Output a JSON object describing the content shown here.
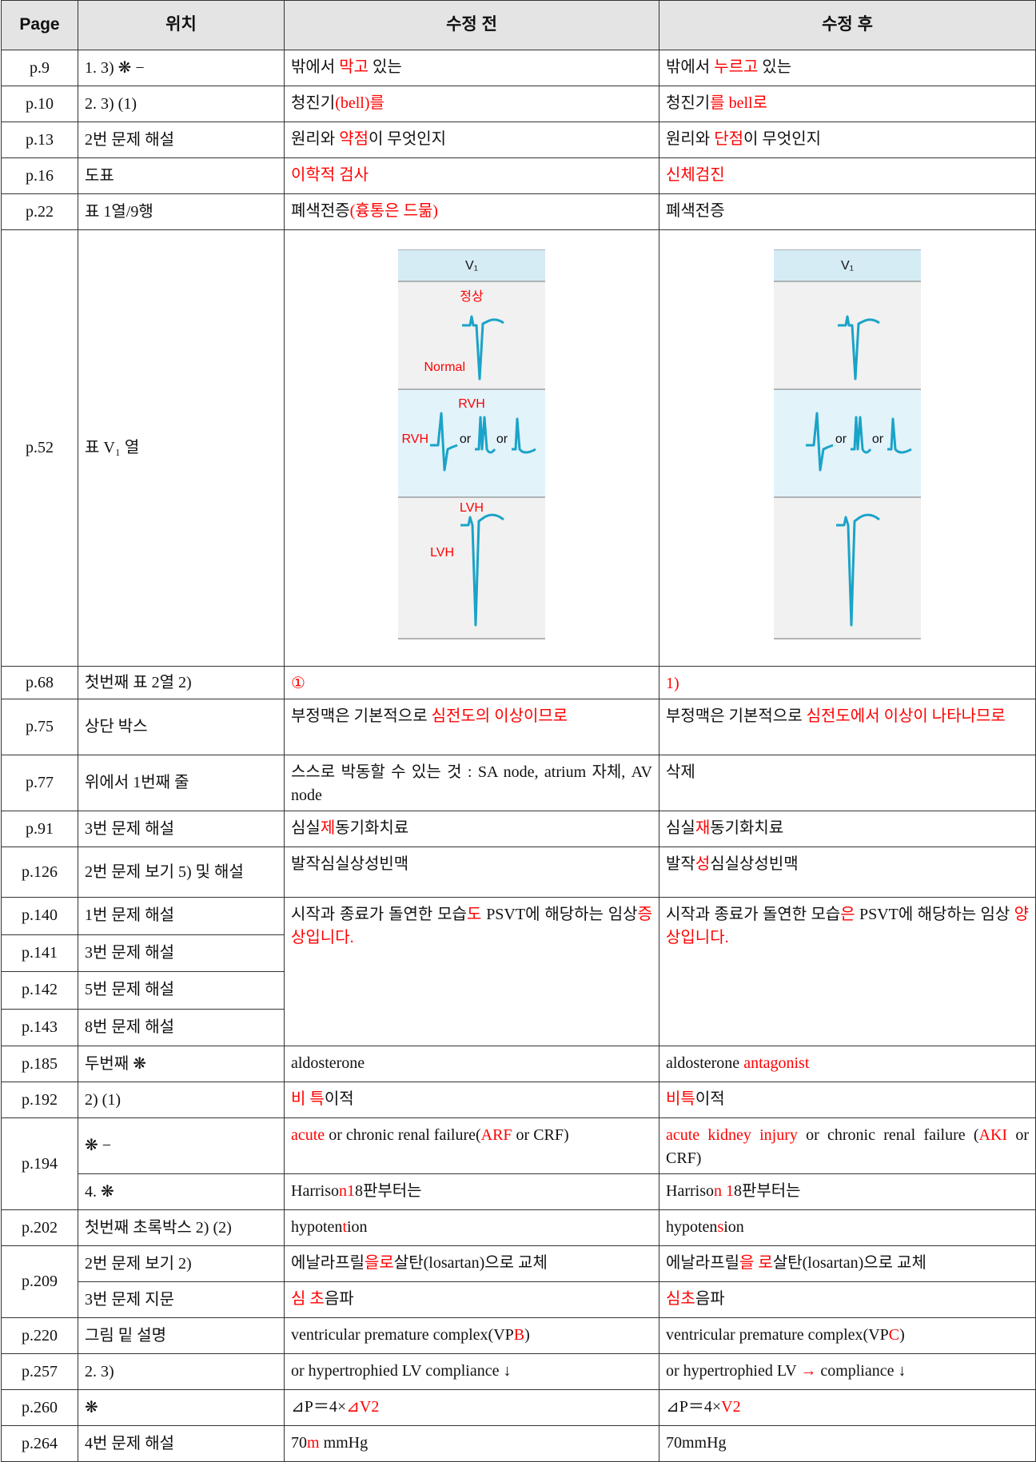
{
  "table": {
    "header": [
      "Page",
      "위치",
      "수정 전",
      "수정 후"
    ],
    "rows": [
      {
        "page": "p.9",
        "location": "1. 3) ❋ −",
        "before": [
          "밖에서 ",
          {
            "text": "막고",
            "color": "#ff0000"
          },
          " 있는"
        ],
        "after": [
          "밖에서 ",
          {
            "text": "누르고",
            "color": "#ff0000"
          },
          " 있는"
        ]
      },
      {
        "page": "p.10",
        "location": "2. 3) (1)",
        "before": [
          "청진기",
          {
            "text": "(bell)를",
            "color": "#ff0000"
          }
        ],
        "after": [
          "청진기",
          {
            "text": "를 bell로",
            "color": "#ff0000"
          }
        ]
      },
      {
        "page": "p.13",
        "location": "2번 문제 해설",
        "before": [
          "원리와 ",
          {
            "text": "약점",
            "color": "#ff0000"
          },
          "이 무엇인지"
        ],
        "after": [
          "원리와 ",
          {
            "text": "단점",
            "color": "#ff0000"
          },
          "이 무엇인지"
        ]
      },
      {
        "page": "p.16",
        "location": "도표",
        "before": [
          {
            "text": "이학적 검사",
            "color": "#ff0000"
          }
        ],
        "after": [
          {
            "text": "신체검진",
            "color": "#ff0000"
          }
        ]
      },
      {
        "page": "p.22",
        "location": "표 1열/9행",
        "before": [
          "폐색전증",
          {
            "text": "(흉통은 드묾)",
            "color": "#ff0000"
          }
        ],
        "after": [
          "폐색전증"
        ]
      },
      {
        "page": "p.52",
        "location": "표 V₁ 열",
        "before": {
          "figure": {
            "header": "V₁",
            "captions": [
              "정상",
              "RVH",
              "LVH"
            ],
            "sides": [
              "Normal",
              "RVH",
              "LVH"
            ],
            "joins": [
              "or",
              "or"
            ]
          }
        },
        "after": {
          "figure": {
            "header": "V₁",
            "joins": [
              "or",
              "or"
            ]
          }
        }
      },
      {
        "page": "p.68",
        "location": "첫번째 표 2열 2)",
        "before": [
          {
            "text": "①",
            "color": "#ff0000"
          }
        ],
        "after": [
          {
            "text": "1)",
            "color": "#ff0000"
          }
        ]
      },
      {
        "page": "p.75",
        "location": "상단 박스",
        "before": [
          "부정맥은 기본적으로 ",
          {
            "text": "심전도의 이상이므로",
            "color": "#ff0000"
          }
        ],
        "after": [
          "부정맥은 기본적으로 ",
          {
            "text": "심전도에서 이상이 나타나므로",
            "color": "#ff0000"
          }
        ]
      },
      {
        "page": "p.77",
        "location": "위에서 1번째 줄",
        "before": [
          "스스로 박동할 수 있는 것 : SA node, atrium 자체, AV node"
        ],
        "after": [
          "삭제"
        ]
      },
      {
        "page": "p.91",
        "location": "3번 문제 해설",
        "before": [
          "심실",
          {
            "text": "제",
            "color": "#ff0000"
          },
          "동기화치료"
        ],
        "after": [
          "심실",
          {
            "text": "재",
            "color": "#ff0000"
          },
          "동기화치료"
        ]
      },
      {
        "page": "p.126",
        "location": "2번 문제 보기 5) 및 해설",
        "before": [
          "발작심실상성빈맥"
        ],
        "after": [
          "발작",
          {
            "text": "성",
            "color": "#ff0000"
          },
          "심실상성빈맥"
        ]
      },
      {
        "page": "p.140",
        "location": "1번 문제 해설",
        "before": [
          "시작과 종료가 돌연한 모습",
          {
            "text": "도",
            "color": "#ff0000"
          },
          " PSVT에 해당하는 임상",
          {
            "text": "증상입니다.",
            "color": "#ff0000"
          }
        ],
        "after": [
          "시작과 종료가 돌연한 모습",
          {
            "text": "은",
            "color": "#ff0000"
          },
          " PSVT에 해당하는 임상 ",
          {
            "text": "양상입니다.",
            "color": "#ff0000"
          }
        ]
      },
      {
        "page": "p.141",
        "location": "3번 문제 해설"
      },
      {
        "page": "p.142",
        "location": "5번 문제 해설"
      },
      {
        "page": "p.143",
        "location": "8번 문제 해설"
      },
      {
        "page": "p.185",
        "location": "두번째 ❋",
        "before": [
          "aldosterone"
        ],
        "after": [
          "aldosterone ",
          {
            "text": "antagonist",
            "color": "#ff0000"
          }
        ]
      },
      {
        "page": "p.192",
        "location": "2) (1)",
        "before": [
          {
            "text": "비 특",
            "color": "#ff0000"
          },
          "이적"
        ],
        "after": [
          {
            "text": "비특",
            "color": "#ff0000"
          },
          "이적"
        ]
      },
      {
        "page": "p.194",
        "location": "❋ −",
        "before": [
          {
            "text": "acute",
            "color": "#ff0000"
          },
          " or chronic renal failure(",
          {
            "text": "ARF",
            "color": "#ff0000"
          },
          " or CRF)"
        ],
        "after": [
          {
            "text": "acute kidney injury",
            "color": "#ff0000"
          },
          " or chronic renal failure (",
          {
            "text": "AKI",
            "color": "#ff0000"
          },
          " or CRF)"
        ]
      },
      {
        "location": "4. ❋",
        "before": [
          "Harriso",
          {
            "text": "n1",
            "color": "#ff0000"
          },
          "8판부터는"
        ],
        "after": [
          "Harriso",
          {
            "text": "n 1",
            "color": "#ff0000"
          },
          "8판부터는"
        ]
      },
      {
        "page": "p.202",
        "location": "첫번째 초록박스 2) (2)",
        "before": [
          "hypoten",
          {
            "text": "t",
            "color": "#ff0000"
          },
          "ion"
        ],
        "after": [
          "hypoten",
          {
            "text": "s",
            "color": "#ff0000"
          },
          "ion"
        ]
      },
      {
        "page": "p.209",
        "location": "2번 문제 보기 2)",
        "before": [
          "에날라프릴",
          {
            "text": "을로",
            "color": "#ff0000"
          },
          "살탄(losartan)으로 교체"
        ],
        "after": [
          "에날라프릴",
          {
            "text": "을 로",
            "color": "#ff0000"
          },
          "살탄(losartan)으로 교체"
        ]
      },
      {
        "location": "3번 문제 지문",
        "before": [
          {
            "text": "심 초",
            "color": "#ff0000"
          },
          "음파"
        ],
        "after": [
          {
            "text": "심초",
            "color": "#ff0000"
          },
          "음파"
        ]
      },
      {
        "page": "p.220",
        "location": "그림 밑 설명",
        "before": [
          "ventricular premature complex(VP",
          {
            "text": "B",
            "color": "#ff0000"
          },
          ")"
        ],
        "after": [
          "ventricular premature complex(VP",
          {
            "text": "C",
            "color": "#ff0000"
          },
          ")"
        ]
      },
      {
        "page": "p.257",
        "location": "2. 3)",
        "before": [
          "or hypertrophied LV compliance ↓"
        ],
        "after": [
          "or hypertrophied LV ",
          {
            "text": "→",
            "color": "#ff0000"
          },
          " compliance ↓"
        ]
      },
      {
        "page": "p.260",
        "location": "❋",
        "before": [
          "⊿P＝4×",
          {
            "text": "⊿V2",
            "color": "#ff0000"
          }
        ],
        "after": [
          "⊿P＝4×",
          {
            "text": "V2",
            "color": "#ff0000"
          }
        ]
      },
      {
        "page": "p.264",
        "location": "4번 문제 해설",
        "before": [
          "70",
          {
            "text": "m",
            "color": "#ff0000"
          },
          " mmHg"
        ],
        "after": [
          "70mmHg"
        ]
      }
    ]
  }
}
